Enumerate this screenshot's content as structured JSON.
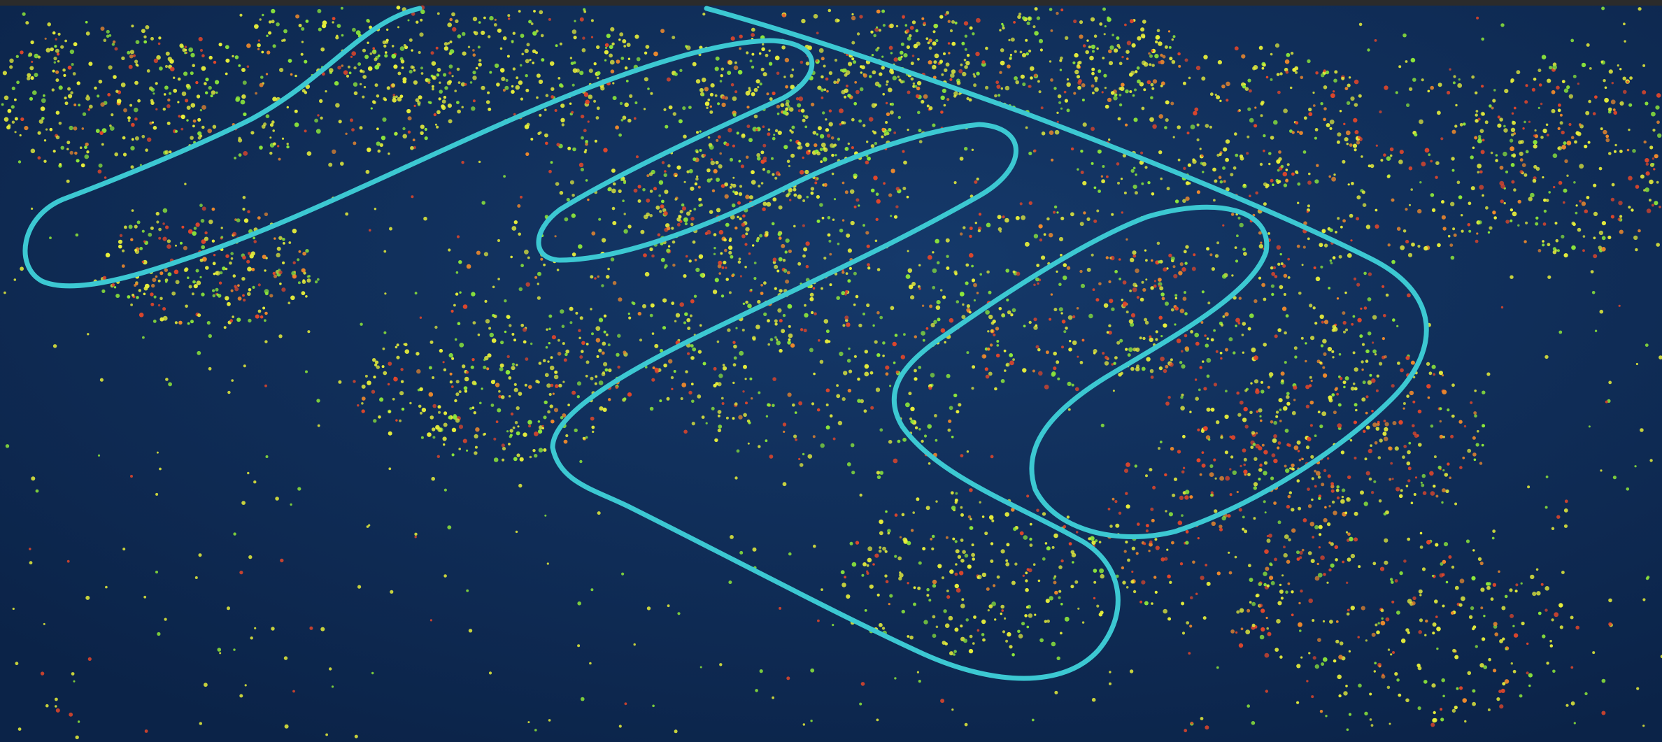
{
  "scene": {
    "palette": {
      "background": "#12315a",
      "background_deep": "#0b2348",
      "top_strip": "#2b2b2b",
      "trajectory": "#3cc8d2",
      "point_yellow": "#e8ef3a",
      "point_green": "#8ee83a",
      "point_red": "#e4472a",
      "point_orange": "#f08a2c"
    },
    "layers": [
      "trajectory-path",
      "feature-point-cloud"
    ],
    "point_cloud": {
      "colors": [
        "yellow",
        "green",
        "red",
        "orange"
      ]
    }
  }
}
